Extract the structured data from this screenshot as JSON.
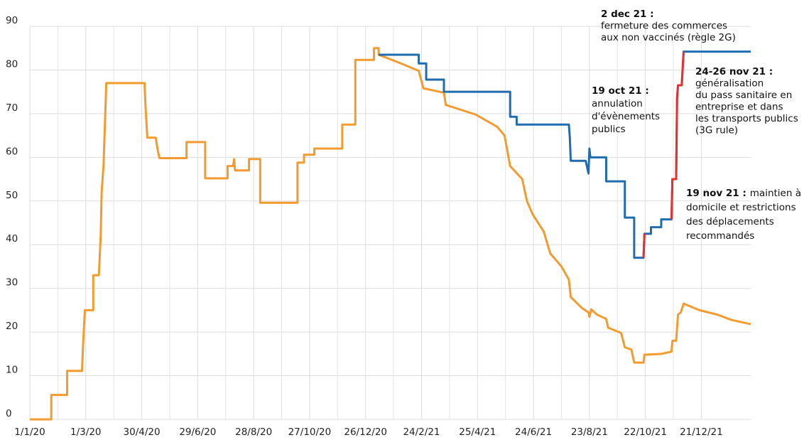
{
  "chart_data": {
    "type": "line",
    "xlim": [
      "1/1/20",
      "12/2/22"
    ],
    "xticks": [
      "1/1/20",
      "1/3/20",
      "30/4/20",
      "29/6/20",
      "28/8/20",
      "27/10/20",
      "26/12/20",
      "24/2/21",
      "25/4/21",
      "24/6/21",
      "23/8/21",
      "22/10/21",
      "21/12/21"
    ],
    "ylim": [
      0,
      90
    ],
    "yticks": [
      0,
      10,
      20,
      30,
      40,
      50,
      60,
      70,
      80,
      90
    ],
    "grid": true,
    "series": [
      {
        "color": "#f39b2f",
        "x": [
          "1/1/20",
          "24/1/20",
          "24/1/20",
          "10/2/20",
          "10/2/20",
          "26/2/20",
          "27/2/20",
          "29/2/20",
          "9/3/20",
          "9/3/20",
          "15/3/20",
          "17/3/20",
          "18/3/20",
          "20/3/20",
          "23/3/20",
          "3/5/20",
          "4/5/20",
          "6/5/20",
          "15/5/20",
          "17/5/20",
          "19/5/20",
          "17/6/20",
          "17/6/20",
          "7/7/20",
          "7/7/20",
          "31/7/20",
          "31/7/20",
          "6/8/20",
          "7/8/20",
          "8/8/20",
          "23/8/20",
          "23/8/20",
          "4/9/20",
          "4/9/20",
          "14/10/20",
          "14/10/20",
          "21/10/20",
          "21/10/20",
          "1/11/20",
          "1/11/20",
          "1/12/20",
          "1/12/20",
          "15/12/20",
          "15/12/20",
          "4/1/21",
          "4/1/21",
          "9/1/21",
          "9/1/21",
          "2/2/21",
          "21/2/21",
          "26/2/21",
          "20/3/21",
          "22/3/21",
          "23/4/21",
          "16/5/21",
          "24/5/21",
          "30/5/21",
          "12/6/21",
          "17/6/21",
          "23/6/21",
          "5/7/21",
          "12/7/21",
          "24/7/21",
          "1/8/21",
          "3/8/21",
          "15/8/21",
          "22/8/21",
          "23/8/21",
          "25/8/21",
          "31/8/21",
          "10/9/21",
          "12/9/21",
          "26/9/21",
          "30/9/21",
          "7/10/21",
          "10/10/21",
          "20/10/21",
          "21/10/21",
          "8/11/21",
          "19/11/21",
          "20/11/21",
          "24/11/21",
          "26/11/21",
          "29/11/21",
          "2/12/21",
          "19/12/21",
          "7/1/22",
          "22/1/22",
          "12/2/22"
        ],
        "values": [
          0,
          0,
          5.6,
          5.6,
          11.1,
          11.1,
          16.7,
          25,
          25,
          33,
          33,
          42,
          52,
          58,
          77,
          77,
          71.8,
          64.5,
          64.5,
          61.8,
          59.8,
          59.8,
          63.5,
          63.5,
          55.2,
          55.2,
          58,
          58,
          59.6,
          57,
          57,
          59.6,
          59.6,
          49.6,
          49.6,
          58.8,
          58.8,
          60.6,
          60.6,
          62,
          62,
          67.5,
          67.5,
          82.3,
          82.3,
          85,
          85,
          83.5,
          81.5,
          79.8,
          75.8,
          74.8,
          72,
          69.8,
          67,
          65,
          58,
          55,
          50,
          47,
          43,
          38,
          35,
          32,
          28,
          25.5,
          24.5,
          23.5,
          25.2,
          24,
          23,
          21,
          19.8,
          16.5,
          16,
          13,
          13,
          14.8,
          15,
          15.5,
          18,
          18,
          24,
          24.5,
          26.5,
          25,
          24,
          22.8,
          21.8
        ]
      },
      {
        "color": "#1f6db0",
        "x": [
          "9/1/21",
          "21/2/21",
          "21/2/21",
          "1/3/21",
          "1/3/21",
          "20/3/21",
          "20/3/21",
          "30/5/21",
          "30/5/21",
          "6/6/21",
          "6/6/21",
          "1/8/21",
          "2/8/21",
          "3/8/21",
          "19/8/21",
          "22/8/21",
          "23/8/21",
          "24/8/21",
          "29/8/21",
          "29/8/21",
          "10/9/21",
          "10/9/21",
          "30/9/21",
          "30/9/21",
          "10/10/21",
          "10/10/21",
          "20/10/21",
          "21/10/21",
          "28/10/21",
          "28/10/21",
          "8/11/21",
          "8/11/21",
          "19/11/21",
          "20/11/21",
          "24/11/21",
          "25/11/21",
          "26/11/21",
          "30/11/21",
          "2/12/21",
          "12/2/22"
        ],
        "values": [
          83.5,
          83.5,
          81.5,
          81.5,
          77.8,
          77.8,
          75,
          75,
          69.3,
          69.3,
          67.5,
          67.5,
          64.5,
          59.2,
          59.2,
          56.3,
          62,
          60,
          60,
          60,
          60,
          54.5,
          54.5,
          46.2,
          46.2,
          37,
          37,
          42.5,
          42.5,
          44,
          44,
          45.8,
          45.8,
          55,
          55,
          73.6,
          76.5,
          76.5,
          84.2,
          84.2
        ]
      },
      {
        "color": "#e8312f",
        "x": [
          "20/10/21",
          "21/10/21",
          "1/11/21",
          "19/11/21",
          "20/11/21",
          "24/11/21",
          "25/11/21",
          "26/11/21",
          "30/11/21",
          "2/12/21"
        ],
        "values": [
          37,
          42.5,
          null,
          45.8,
          55,
          55,
          73.6,
          76.5,
          76.5,
          84.2
        ]
      }
    ],
    "annotations": [
      {
        "title": "2 dec 21 :",
        "lines": [
          "fermeture des commerces",
          "aux non vaccinés (règle 2G)"
        ]
      },
      {
        "title": "19 oct 21 :",
        "lines": [
          "annulation",
          "d'évènements",
          "publics"
        ]
      },
      {
        "title": "24-26 nov 21 :",
        "lines": [
          "généralisation",
          "du pass sanitaire en",
          "entreprise et dans",
          "les transports publics",
          "(3G rule)"
        ]
      },
      {
        "title": "19 nov 21 :",
        "lines": [
          "maintien à",
          "domicile et restrictions",
          "des déplacements",
          "recommandés"
        ]
      }
    ]
  }
}
